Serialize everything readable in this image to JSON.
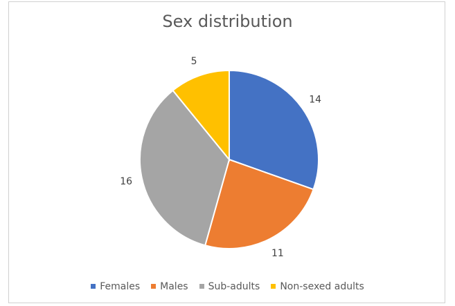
{
  "chart_data": {
    "type": "pie",
    "title": "Sex distribution",
    "categories": [
      "Females",
      "Males",
      "Sub-adults",
      "Non-sexed adults"
    ],
    "values": [
      14,
      11,
      16,
      5
    ],
    "colors": [
      "#4472C4",
      "#ED7D31",
      "#A5A5A5",
      "#FFC000"
    ],
    "start_angle_deg": 0,
    "direction": "clockwise",
    "legend_position": "bottom",
    "data_labels": true
  }
}
